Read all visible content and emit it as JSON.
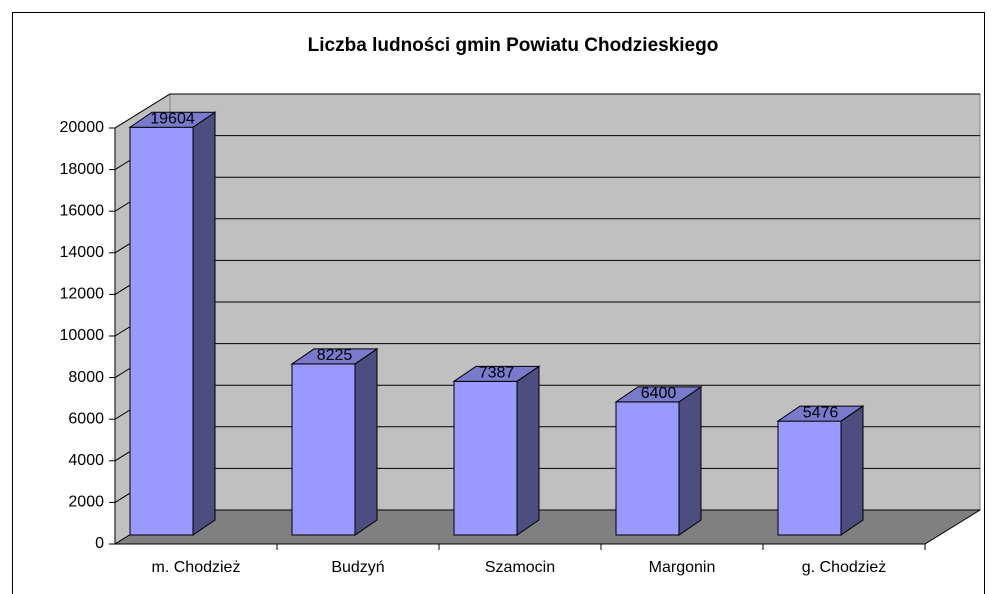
{
  "chart_data": {
    "type": "bar3d",
    "title": "Liczba ludności gmin Powiatu Chodzieskiego",
    "categories": [
      "m. Chodzież",
      "Budzyń",
      "Szamocin",
      "Margonin",
      "g. Chodzież"
    ],
    "values": [
      19604,
      8225,
      7387,
      6400,
      5476
    ],
    "color": "#9999ff",
    "ylim": [
      0,
      20000
    ],
    "yticks": [
      0,
      2000,
      4000,
      6000,
      8000,
      10000,
      12000,
      14000,
      16000,
      18000,
      20000
    ],
    "grid": true
  }
}
